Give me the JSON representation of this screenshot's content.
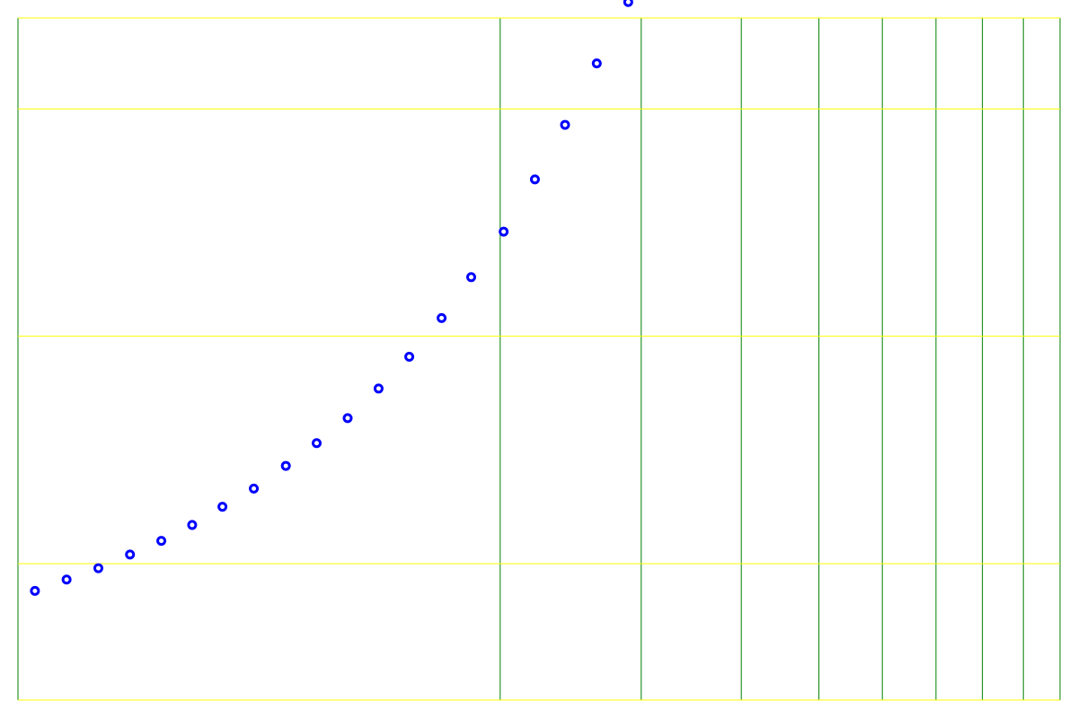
{
  "chart_data": {
    "type": "scatter",
    "title": "",
    "xlabel": "",
    "ylabel": "",
    "x_scale": "log",
    "y_scale": "linear",
    "xlim": [
      0.5,
      10
    ],
    "ylim": [
      -0.6,
      2.4
    ],
    "x_gridlines": [
      2,
      3,
      4,
      5,
      6,
      7,
      8,
      9,
      10
    ],
    "y_gridlines": [
      0,
      1,
      2
    ],
    "grid": true,
    "legend": false,
    "series": [
      {
        "marker": "open-circle",
        "x": [
          0.525,
          0.575,
          0.63,
          0.69,
          0.755,
          0.825,
          0.9,
          0.985,
          1.08,
          1.18,
          1.29,
          1.41,
          1.54,
          1.69,
          1.84,
          2.02,
          2.21,
          2.41,
          2.64,
          2.89
        ],
        "y": [
          -0.12,
          -0.07,
          -0.02,
          0.04,
          0.1,
          0.17,
          0.25,
          0.33,
          0.43,
          0.53,
          0.64,
          0.77,
          0.91,
          1.08,
          1.26,
          1.46,
          1.69,
          1.93,
          2.2,
          2.47
        ]
      }
    ]
  },
  "colors": {
    "background": "#ffffff",
    "horizontal_grid": "#ffff00",
    "vertical_grid": "#008000",
    "marker": "#0000ff"
  }
}
